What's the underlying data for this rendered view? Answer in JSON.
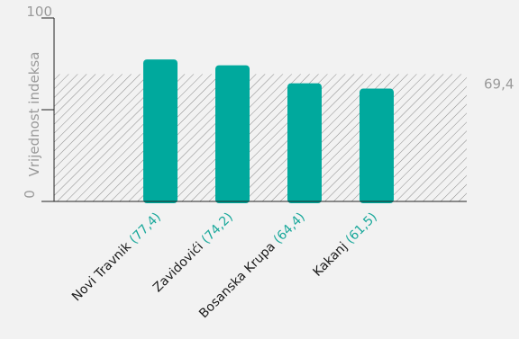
{
  "chart_data": {
    "type": "bar",
    "categories": [
      "Novi Travnik",
      "Zavidovići",
      "Bosanska Krupa",
      "Kakanj"
    ],
    "value_labels": [
      "(77,4)",
      "(74,2)",
      "(64,4)",
      "(61,5)"
    ],
    "values": [
      77.4,
      74.2,
      64.4,
      61.5
    ],
    "ylabel": "Vrijednost indeksa",
    "ylim": [
      0,
      100
    ],
    "yticks": [
      {
        "value": 0,
        "label": "0"
      },
      {
        "value": 50,
        "label": ""
      },
      {
        "value": 100,
        "label": "100"
      }
    ],
    "reference_line": {
      "value": 69.4,
      "label": "69,4",
      "pattern": "hatched"
    },
    "colors": {
      "bar": "#00a99d",
      "hatch": "#8a8a8a",
      "axis": "#222222",
      "value_text": "#1aa89b",
      "category_text": "#1a1a1a",
      "muted_text": "#9a9a9a",
      "background": "#f2f2f2"
    }
  }
}
